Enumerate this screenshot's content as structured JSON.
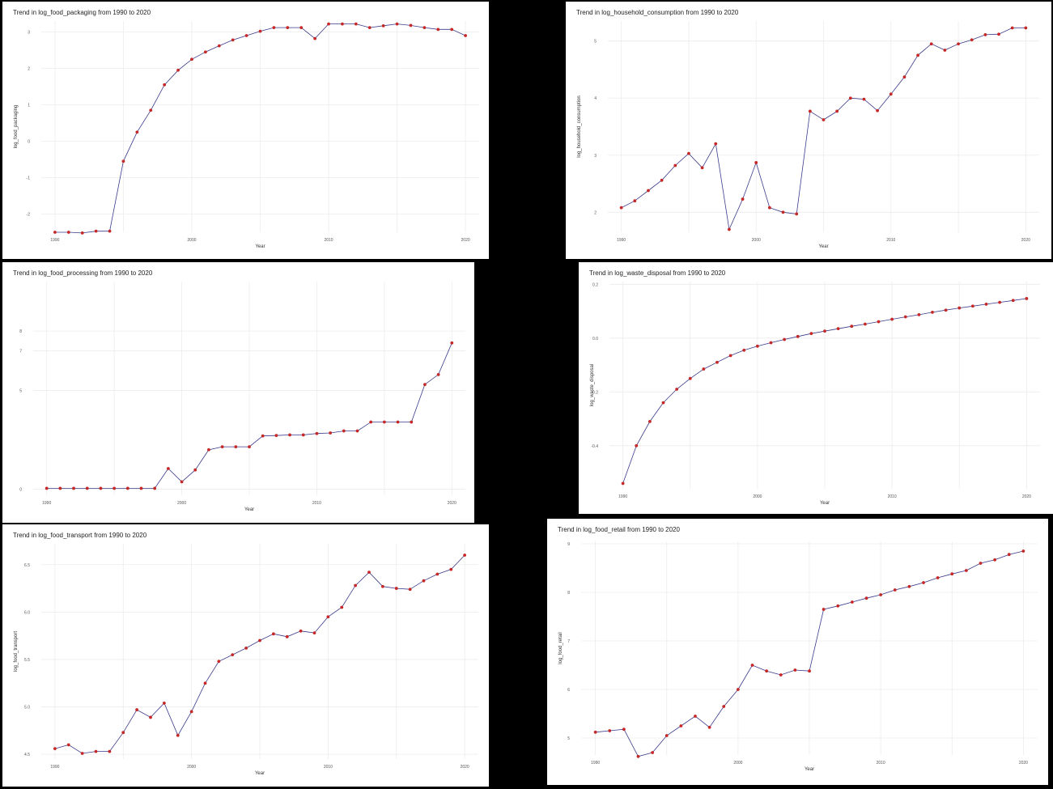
{
  "colors": {
    "background": "#000000",
    "panel": "#ffffff",
    "line": "#3a3a8c",
    "point": "#c62828",
    "grid": "#ececec"
  },
  "chart_data": [
    {
      "id": "packaging",
      "type": "line",
      "title": "Trend in log_food_packaging from 1990 to 2020",
      "xlabel": "Year",
      "ylabel": "log_food_packaging",
      "x_ticks": [
        "1990",
        "2000",
        "2010",
        "2020"
      ],
      "y_ticks": [
        "-2",
        "-1",
        "0",
        "1",
        "2",
        "3"
      ],
      "ylim": [
        -2.5,
        3.3
      ],
      "grid": true,
      "x": [
        1990,
        1991,
        1992,
        1993,
        1994,
        1995,
        1996,
        1997,
        1998,
        1999,
        2000,
        2001,
        2002,
        2003,
        2004,
        2005,
        2006,
        2007,
        2008,
        2009,
        2010,
        2011,
        2012,
        2013,
        2014,
        2015,
        2016,
        2017,
        2018,
        2019,
        2020
      ],
      "y": [
        -2.5,
        -2.5,
        -2.52,
        -2.47,
        -2.47,
        -0.55,
        0.25,
        0.85,
        1.55,
        1.95,
        2.25,
        2.45,
        2.62,
        2.78,
        2.9,
        3.02,
        3.12,
        3.12,
        3.12,
        2.82,
        3.22,
        3.22,
        3.22,
        3.12,
        3.17,
        3.22,
        3.18,
        3.12,
        3.07,
        3.07,
        2.9
      ]
    },
    {
      "id": "household",
      "type": "line",
      "title": "Trend in log_household_consumption from 1990 to 2020",
      "xlabel": "Year",
      "ylabel": "log_household_consumption",
      "x_ticks": [
        "1990",
        "2000",
        "2010",
        "2020"
      ],
      "y_ticks": [
        "2",
        "3",
        "4",
        "5"
      ],
      "ylim": [
        1.65,
        5.35
      ],
      "grid": true,
      "x": [
        1990,
        1991,
        1992,
        1993,
        1994,
        1995,
        1996,
        1997,
        1998,
        1999,
        2000,
        2001,
        2002,
        2003,
        2004,
        2005,
        2006,
        2007,
        2008,
        2009,
        2010,
        2011,
        2012,
        2013,
        2014,
        2015,
        2016,
        2017,
        2018,
        2019,
        2020
      ],
      "y": [
        2.08,
        2.2,
        2.38,
        2.56,
        2.82,
        3.03,
        2.78,
        3.2,
        1.7,
        2.23,
        2.87,
        2.08,
        2.0,
        1.97,
        3.77,
        3.62,
        3.77,
        4.0,
        3.98,
        3.78,
        4.07,
        4.37,
        4.75,
        4.95,
        4.84,
        4.95,
        5.02,
        5.11,
        5.12,
        5.23,
        5.23
      ]
    },
    {
      "id": "processing",
      "type": "line",
      "title": "Trend in log_food_processing from 1990 to 2020",
      "xlabel": "Year",
      "ylabel": "",
      "x_ticks": [
        "1990",
        "2000",
        "2010",
        "2020"
      ],
      "y_ticks": [
        "0",
        "5",
        "7",
        "8"
      ],
      "ylim": [
        -0.3,
        10.5
      ],
      "grid": true,
      "x": [
        1990,
        1991,
        1992,
        1993,
        1994,
        1995,
        1996,
        1997,
        1998,
        1999,
        2000,
        2001,
        2002,
        2003,
        2004,
        2005,
        2006,
        2007,
        2008,
        2009,
        2010,
        2011,
        2012,
        2013,
        2014,
        2015,
        2016,
        2017,
        2018,
        2019,
        2020
      ],
      "y": [
        0.05,
        0.05,
        0.05,
        0.05,
        0.05,
        0.05,
        0.05,
        0.05,
        0.05,
        1.05,
        0.38,
        0.98,
        2.0,
        2.15,
        2.15,
        2.15,
        2.7,
        2.72,
        2.75,
        2.75,
        2.82,
        2.85,
        2.95,
        2.95,
        3.4,
        3.4,
        3.4,
        3.4,
        5.3,
        5.8,
        7.4
      ]
    },
    {
      "id": "waste",
      "type": "line",
      "title": "Trend in log_waste_disposal from 1990 to 2020",
      "xlabel": "Year",
      "ylabel": "log_waste_disposal",
      "x_ticks": [
        "1990",
        "2000",
        "2010",
        "2020"
      ],
      "y_ticks": [
        "0.2",
        "0.0",
        "-0.2",
        "-0.4"
      ],
      "ylim": [
        -0.56,
        0.21
      ],
      "grid": true,
      "x": [
        1990,
        1991,
        1992,
        1993,
        1994,
        1995,
        1996,
        1997,
        1998,
        1999,
        2000,
        2001,
        2002,
        2003,
        2004,
        2005,
        2006,
        2007,
        2008,
        2009,
        2010,
        2011,
        2012,
        2013,
        2014,
        2015,
        2016,
        2017,
        2018,
        2019,
        2020
      ],
      "y": [
        -0.54,
        -0.4,
        -0.31,
        -0.24,
        -0.19,
        -0.15,
        -0.115,
        -0.09,
        -0.065,
        -0.045,
        -0.03,
        -0.017,
        -0.005,
        0.006,
        0.017,
        0.026,
        0.035,
        0.044,
        0.052,
        0.061,
        0.07,
        0.079,
        0.087,
        0.096,
        0.104,
        0.112,
        0.119,
        0.126,
        0.133,
        0.14,
        0.147
      ]
    },
    {
      "id": "transport",
      "type": "line",
      "title": "Trend in log_food_transport from 1990 to 2020",
      "xlabel": "Year",
      "ylabel": "log_food_transport",
      "x_ticks": [
        "1990",
        "2000",
        "2010",
        "2020"
      ],
      "y_ticks": [
        "4.5",
        "5.0",
        "5.5",
        "6.0",
        "6.5"
      ],
      "ylim": [
        4.45,
        6.72
      ],
      "grid": true,
      "x": [
        1990,
        1991,
        1992,
        1993,
        1994,
        1995,
        1996,
        1997,
        1998,
        1999,
        2000,
        2001,
        2002,
        2003,
        2004,
        2005,
        2006,
        2007,
        2008,
        2009,
        2010,
        2011,
        2012,
        2013,
        2014,
        2015,
        2016,
        2017,
        2018,
        2019,
        2020
      ],
      "y": [
        4.56,
        4.6,
        4.51,
        4.53,
        4.53,
        4.73,
        4.97,
        4.89,
        5.04,
        4.7,
        4.95,
        5.25,
        5.48,
        5.55,
        5.62,
        5.7,
        5.77,
        5.74,
        5.8,
        5.78,
        5.95,
        6.05,
        6.28,
        6.42,
        6.27,
        6.25,
        6.24,
        6.33,
        6.4,
        6.45,
        6.6
      ]
    },
    {
      "id": "retail",
      "type": "line",
      "title": "Trend in log_food_retail from 1990 to 2020",
      "xlabel": "Year",
      "ylabel": "log_food_retail",
      "x_ticks": [
        "1990",
        "2000",
        "2010",
        "2020"
      ],
      "y_ticks": [
        "5",
        "6",
        "7",
        "8",
        "9"
      ],
      "ylim": [
        4.65,
        9.05
      ],
      "grid": true,
      "x": [
        1990,
        1991,
        1992,
        1993,
        1994,
        1995,
        1996,
        1997,
        1998,
        1999,
        2000,
        2001,
        2002,
        2003,
        2004,
        2005,
        2006,
        2007,
        2008,
        2009,
        2010,
        2011,
        2012,
        2013,
        2014,
        2015,
        2016,
        2017,
        2018,
        2019,
        2020
      ],
      "y": [
        5.12,
        5.15,
        5.18,
        4.62,
        4.7,
        5.05,
        5.25,
        5.45,
        5.22,
        5.65,
        6.0,
        6.5,
        6.38,
        6.3,
        6.4,
        6.38,
        7.65,
        7.72,
        7.8,
        7.88,
        7.95,
        8.05,
        8.12,
        8.2,
        8.3,
        8.38,
        8.45,
        8.6,
        8.67,
        8.78,
        8.85
      ]
    }
  ]
}
